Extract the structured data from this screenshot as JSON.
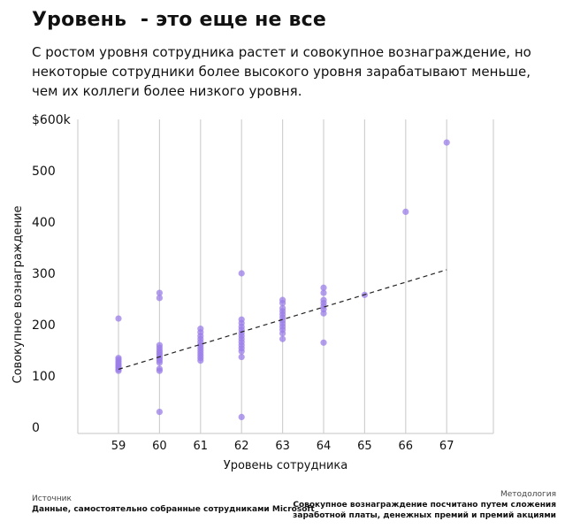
{
  "header": {
    "title": "Уровень  - это еще не все",
    "subtitle_lines": [
      "С ростом уровня сотрудника растет и совокупное вознаграждение, но",
      "некоторые сотрудники более высокого уровня зарабатывают меньше,",
      "чем их коллеги более низкого уровня."
    ]
  },
  "footer": {
    "source_label": "Источник",
    "source_text": "Данные, самостоятельно собранные сотрудниками Microsoft",
    "method_label": "Методология",
    "method_lines": [
      "Совокупное вознаграждение посчитано путем сложения",
      "заработной платы, денежных премий и премий акциями"
    ]
  },
  "colors": {
    "points": "#9b7ee8",
    "trend": "#222222",
    "grid": "#d0d0d0"
  },
  "chart_data": {
    "type": "scatter",
    "xlabel": "Уровень сотрудника",
    "ylabel": "Совокупное вознаграждение",
    "x_categories": [
      "59",
      "60",
      "61",
      "62",
      "63",
      "64",
      "65",
      "66",
      "67"
    ],
    "y_ticks": [
      {
        "value": 0,
        "label": "0"
      },
      {
        "value": 100,
        "label": "100"
      },
      {
        "value": 200,
        "label": "200"
      },
      {
        "value": 300,
        "label": "300"
      },
      {
        "value": 400,
        "label": "400"
      },
      {
        "value": 500,
        "label": "500"
      },
      {
        "value": 600,
        "label": "$600k"
      }
    ],
    "ylim": [
      0,
      600
    ],
    "grid": "vertical",
    "points": [
      [
        59,
        212
      ],
      [
        59,
        135
      ],
      [
        59,
        132
      ],
      [
        59,
        128
      ],
      [
        59,
        125
      ],
      [
        59,
        122
      ],
      [
        59,
        119
      ],
      [
        59,
        116
      ],
      [
        59,
        113
      ],
      [
        59,
        110
      ],
      [
        60,
        262
      ],
      [
        60,
        252
      ],
      [
        60,
        160
      ],
      [
        60,
        155
      ],
      [
        60,
        150
      ],
      [
        60,
        146
      ],
      [
        60,
        142
      ],
      [
        60,
        138
      ],
      [
        60,
        134
      ],
      [
        60,
        130
      ],
      [
        60,
        126
      ],
      [
        60,
        114
      ],
      [
        60,
        110
      ],
      [
        60,
        30
      ],
      [
        61,
        192
      ],
      [
        61,
        185
      ],
      [
        61,
        178
      ],
      [
        61,
        172
      ],
      [
        61,
        166
      ],
      [
        61,
        160
      ],
      [
        61,
        155
      ],
      [
        61,
        150
      ],
      [
        61,
        145
      ],
      [
        61,
        140
      ],
      [
        61,
        135
      ],
      [
        61,
        130
      ],
      [
        62,
        300
      ],
      [
        62,
        210
      ],
      [
        62,
        203
      ],
      [
        62,
        196
      ],
      [
        62,
        190
      ],
      [
        62,
        184
      ],
      [
        62,
        178
      ],
      [
        62,
        172
      ],
      [
        62,
        166
      ],
      [
        62,
        160
      ],
      [
        62,
        154
      ],
      [
        62,
        148
      ],
      [
        62,
        137
      ],
      [
        62,
        20
      ],
      [
        63,
        248
      ],
      [
        63,
        242
      ],
      [
        63,
        232
      ],
      [
        63,
        226
      ],
      [
        63,
        220
      ],
      [
        63,
        214
      ],
      [
        63,
        208
      ],
      [
        63,
        202
      ],
      [
        63,
        196
      ],
      [
        63,
        190
      ],
      [
        63,
        183
      ],
      [
        63,
        172
      ],
      [
        64,
        272
      ],
      [
        64,
        262
      ],
      [
        64,
        248
      ],
      [
        64,
        242
      ],
      [
        64,
        236
      ],
      [
        64,
        230
      ],
      [
        64,
        222
      ],
      [
        64,
        165
      ],
      [
        65,
        258
      ],
      [
        66,
        420
      ],
      [
        67,
        555
      ]
    ],
    "trendline": [
      [
        59,
        113
      ],
      [
        67,
        307
      ]
    ]
  }
}
